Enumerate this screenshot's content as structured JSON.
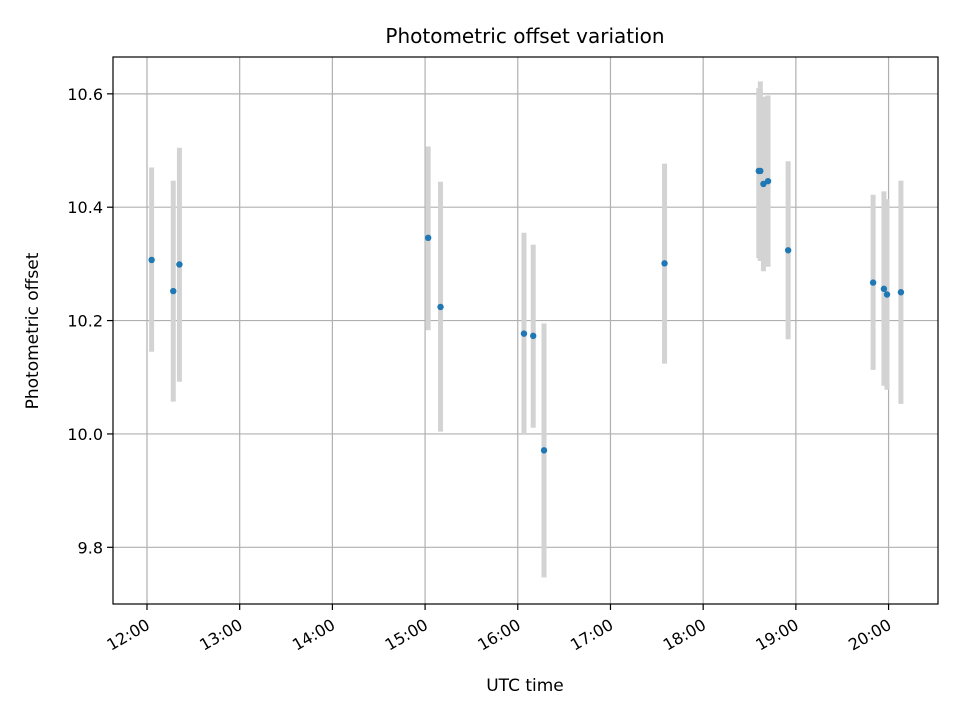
{
  "chart_data": {
    "type": "scatter",
    "title": "Photometric offset variation",
    "xlabel": "UTC time",
    "ylabel": "Photometric offset",
    "x_tick_labels": [
      "12:00",
      "13:00",
      "14:00",
      "15:00",
      "16:00",
      "17:00",
      "18:00",
      "19:00",
      "20:00"
    ],
    "y_tick_labels": [
      "9.8",
      "10.0",
      "10.2",
      "10.4",
      "10.6"
    ],
    "y_ticks": [
      9.8,
      10.0,
      10.2,
      10.4,
      10.6
    ],
    "x_ticks_hours": [
      12,
      13,
      14,
      15,
      16,
      17,
      18,
      19,
      20
    ],
    "xlim": [
      "11:38",
      "20:32"
    ],
    "ylim": [
      9.7,
      10.665
    ],
    "grid": true,
    "colors": {
      "marker": "#1f77b4",
      "errorbar": "#d3d3d3",
      "grid": "#b0b0b0"
    },
    "series": [
      {
        "points": [
          {
            "x": "12:03",
            "y": 10.307,
            "ylo": 10.145,
            "yhi": 10.47
          },
          {
            "x": "12:17",
            "y": 10.252,
            "ylo": 10.057,
            "yhi": 10.447
          },
          {
            "x": "12:21",
            "y": 10.299,
            "ylo": 10.092,
            "yhi": 10.505
          },
          {
            "x": "15:02",
            "y": 10.346,
            "ylo": 10.183,
            "yhi": 10.507
          },
          {
            "x": "15:10",
            "y": 10.224,
            "ylo": 10.004,
            "yhi": 10.445
          },
          {
            "x": "16:04",
            "y": 10.177,
            "ylo": 10.0,
            "yhi": 10.355
          },
          {
            "x": "16:10",
            "y": 10.173,
            "ylo": 10.011,
            "yhi": 10.334
          },
          {
            "x": "16:17",
            "y": 9.971,
            "ylo": 9.747,
            "yhi": 10.195
          },
          {
            "x": "17:35",
            "y": 10.301,
            "ylo": 10.124,
            "yhi": 10.477
          },
          {
            "x": "18:36",
            "y": 10.464,
            "ylo": 10.31,
            "yhi": 10.61
          },
          {
            "x": "18:37",
            "y": 10.464,
            "ylo": 10.305,
            "yhi": 10.622
          },
          {
            "x": "18:39",
            "y": 10.441,
            "ylo": 10.287,
            "yhi": 10.595
          },
          {
            "x": "18:42",
            "y": 10.446,
            "ylo": 10.295,
            "yhi": 10.597
          },
          {
            "x": "18:55",
            "y": 10.324,
            "ylo": 10.167,
            "yhi": 10.481
          },
          {
            "x": "19:50",
            "y": 10.267,
            "ylo": 10.113,
            "yhi": 10.422
          },
          {
            "x": "19:57",
            "y": 10.256,
            "ylo": 10.085,
            "yhi": 10.428
          },
          {
            "x": "19:59",
            "y": 10.246,
            "ylo": 10.078,
            "yhi": 10.414
          },
          {
            "x": "20:08",
            "y": 10.25,
            "ylo": 10.053,
            "yhi": 10.447
          }
        ]
      }
    ]
  }
}
